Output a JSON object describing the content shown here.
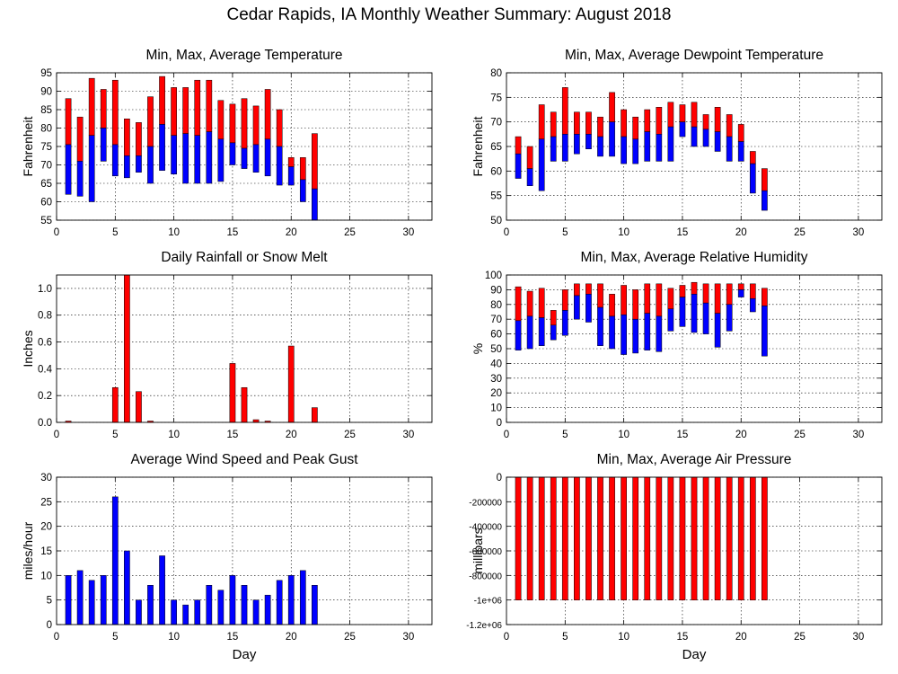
{
  "figure": {
    "title": "Cedar Rapids, IA Monthly Weather Summary: August 2018"
  },
  "chart_data": [
    {
      "id": "temperature",
      "type": "bar",
      "title": "Min, Max, Average Temperature",
      "xlabel": "",
      "ylabel": "Fahrenheit",
      "xlim": [
        0,
        32
      ],
      "ylim": [
        55,
        95
      ],
      "xticks": [
        0,
        5,
        10,
        15,
        20,
        25,
        30
      ],
      "yticks": [
        55,
        60,
        65,
        70,
        75,
        80,
        85,
        90,
        95
      ],
      "grid": true,
      "x": [
        1,
        2,
        3,
        4,
        5,
        6,
        7,
        8,
        9,
        10,
        11,
        12,
        13,
        14,
        15,
        16,
        17,
        18,
        19,
        20,
        21,
        22
      ],
      "min": [
        62,
        61.5,
        60,
        71,
        67,
        66.5,
        68,
        65,
        68.5,
        67.5,
        65,
        65,
        65,
        65.5,
        70,
        69,
        68,
        67,
        64.5,
        64.5,
        60,
        55
      ],
      "avg": [
        75.5,
        71,
        78,
        80,
        75.5,
        72.5,
        72.5,
        75,
        81,
        78,
        78.5,
        78,
        79,
        77,
        76,
        74.5,
        75.5,
        77,
        75,
        69.5,
        66,
        63.5
      ],
      "max": [
        88,
        83,
        93.5,
        90.5,
        93,
        82.5,
        81.5,
        88.5,
        94,
        91,
        91,
        93,
        93,
        87.5,
        86.5,
        88,
        86,
        90.5,
        85,
        72,
        72,
        78.5
      ],
      "colors": {
        "upper": "#ff0000",
        "lower": "#0000ff"
      }
    },
    {
      "id": "dewpoint",
      "type": "bar",
      "title": "Min, Max, Average Dewpoint Temperature",
      "xlabel": "",
      "ylabel": "Fahrenheit",
      "xlim": [
        0,
        32
      ],
      "ylim": [
        50,
        80
      ],
      "xticks": [
        0,
        5,
        10,
        15,
        20,
        25,
        30
      ],
      "yticks": [
        50,
        55,
        60,
        65,
        70,
        75,
        80
      ],
      "grid": true,
      "x": [
        1,
        2,
        3,
        4,
        5,
        6,
        7,
        8,
        9,
        10,
        11,
        12,
        13,
        14,
        15,
        16,
        17,
        18,
        19,
        20,
        21,
        22
      ],
      "min": [
        58.5,
        57,
        56,
        62,
        62,
        63.5,
        64.5,
        63,
        63,
        61.5,
        61.5,
        62,
        62,
        62,
        67,
        65,
        65,
        64,
        62,
        62,
        55.5,
        52
      ],
      "avg": [
        63.5,
        60.5,
        66.5,
        67,
        67.5,
        67.5,
        67.5,
        67,
        70,
        67,
        66.5,
        68,
        67.5,
        69,
        70,
        69,
        68.5,
        68,
        67,
        66,
        61.5,
        56
      ],
      "max": [
        67,
        65,
        73.5,
        72,
        77,
        72,
        72,
        71,
        76,
        72.5,
        71,
        72.5,
        73,
        74,
        73.5,
        74,
        71.5,
        73,
        71.5,
        69.5,
        64,
        60.5
      ],
      "colors": {
        "upper": "#ff0000",
        "lower": "#0000ff"
      }
    },
    {
      "id": "rainfall",
      "type": "bar",
      "title": "Daily Rainfall or Snow Melt",
      "xlabel": "",
      "ylabel": "Inches",
      "xlim": [
        0,
        32
      ],
      "ylim": [
        0,
        1.1
      ],
      "xticks": [
        0,
        5,
        10,
        15,
        20,
        25,
        30
      ],
      "yticks": [
        0,
        0.2,
        0.4,
        0.6,
        0.8,
        1
      ],
      "ytick_labels": [
        "0.0",
        "0.2",
        "0.4",
        "0.6",
        "0.8",
        "1.0"
      ],
      "grid": true,
      "x": [
        1,
        5,
        6,
        7,
        8,
        15,
        16,
        17,
        18,
        20,
        22
      ],
      "values": [
        0.01,
        0.26,
        1.1,
        0.23,
        0.01,
        0.44,
        0.26,
        0.02,
        0.01,
        0.57,
        0.11
      ],
      "colors": {
        "bar": "#ff0000"
      }
    },
    {
      "id": "humidity",
      "type": "bar",
      "title": "Min, Max, Average Relative Humidity",
      "xlabel": "",
      "ylabel": "%",
      "xlim": [
        0,
        32
      ],
      "ylim": [
        0,
        100
      ],
      "xticks": [
        0,
        5,
        10,
        15,
        20,
        25,
        30
      ],
      "yticks": [
        0,
        10,
        20,
        30,
        40,
        50,
        60,
        70,
        80,
        90,
        100
      ],
      "grid": true,
      "x": [
        1,
        2,
        3,
        4,
        5,
        6,
        7,
        8,
        9,
        10,
        11,
        12,
        13,
        14,
        15,
        16,
        17,
        18,
        19,
        20,
        21,
        22
      ],
      "min": [
        49,
        50,
        52,
        56,
        59,
        70,
        68,
        52,
        50,
        46,
        47,
        49,
        48,
        62,
        65,
        61,
        60,
        51,
        62,
        85,
        75,
        45
      ],
      "avg": [
        69,
        72,
        71,
        66,
        76,
        86,
        87,
        78,
        72,
        73,
        70,
        74,
        72,
        77,
        85,
        87,
        81,
        74,
        80,
        90,
        84,
        79
      ],
      "max": [
        92,
        89,
        91,
        76,
        90,
        94,
        94,
        94,
        87,
        93,
        90,
        94,
        94,
        91,
        93,
        95,
        94,
        94,
        94,
        94,
        94,
        91
      ],
      "colors": {
        "upper": "#ff0000",
        "lower": "#0000ff"
      }
    },
    {
      "id": "wind",
      "type": "bar",
      "title": "Average Wind Speed and Peak Gust",
      "xlabel": "Day",
      "ylabel": "miles/hour",
      "xlim": [
        0,
        32
      ],
      "ylim": [
        0,
        30
      ],
      "xticks": [
        0,
        5,
        10,
        15,
        20,
        25,
        30
      ],
      "yticks": [
        0,
        5,
        10,
        15,
        20,
        25,
        30
      ],
      "grid": true,
      "x": [
        1,
        2,
        3,
        4,
        5,
        6,
        7,
        8,
        9,
        10,
        11,
        12,
        13,
        14,
        15,
        16,
        17,
        18,
        19,
        20,
        21,
        22
      ],
      "values": [
        10,
        11,
        9,
        10,
        26,
        15,
        5,
        8,
        14,
        5,
        4,
        5,
        8,
        7,
        10,
        8,
        5,
        6,
        9,
        10,
        11,
        8
      ],
      "colors": {
        "bar": "#0000ff"
      }
    },
    {
      "id": "pressure",
      "type": "bar",
      "title": "Min, Max, Average Air Pressure",
      "xlabel": "Day",
      "ylabel": "millibars",
      "xlim": [
        0,
        32
      ],
      "ylim": [
        -1200000,
        0
      ],
      "xticks": [
        0,
        5,
        10,
        15,
        20,
        25,
        30
      ],
      "yticks": [
        0,
        -200000,
        -400000,
        -600000,
        -800000,
        -1000000,
        -1200000
      ],
      "ytick_labels": [
        "0",
        "-200000",
        "-400000",
        "-600000",
        "-800000",
        "-1e+06",
        "-1.2e+06"
      ],
      "grid": true,
      "x": [
        1,
        2,
        3,
        4,
        5,
        6,
        7,
        8,
        9,
        10,
        11,
        12,
        13,
        14,
        15,
        16,
        17,
        18,
        19,
        20,
        21,
        22
      ],
      "values": [
        -1000000,
        -1000000,
        -1000000,
        -1000000,
        -1000000,
        -1000000,
        -1000000,
        -1000000,
        -1000000,
        -1000000,
        -1000000,
        -1000000,
        -1000000,
        -1000000,
        -1000000,
        -1000000,
        -1000000,
        -1000000,
        -1000000,
        -1000000,
        -1000000,
        -1000000
      ],
      "colors": {
        "bar": "#ff0000"
      }
    }
  ]
}
